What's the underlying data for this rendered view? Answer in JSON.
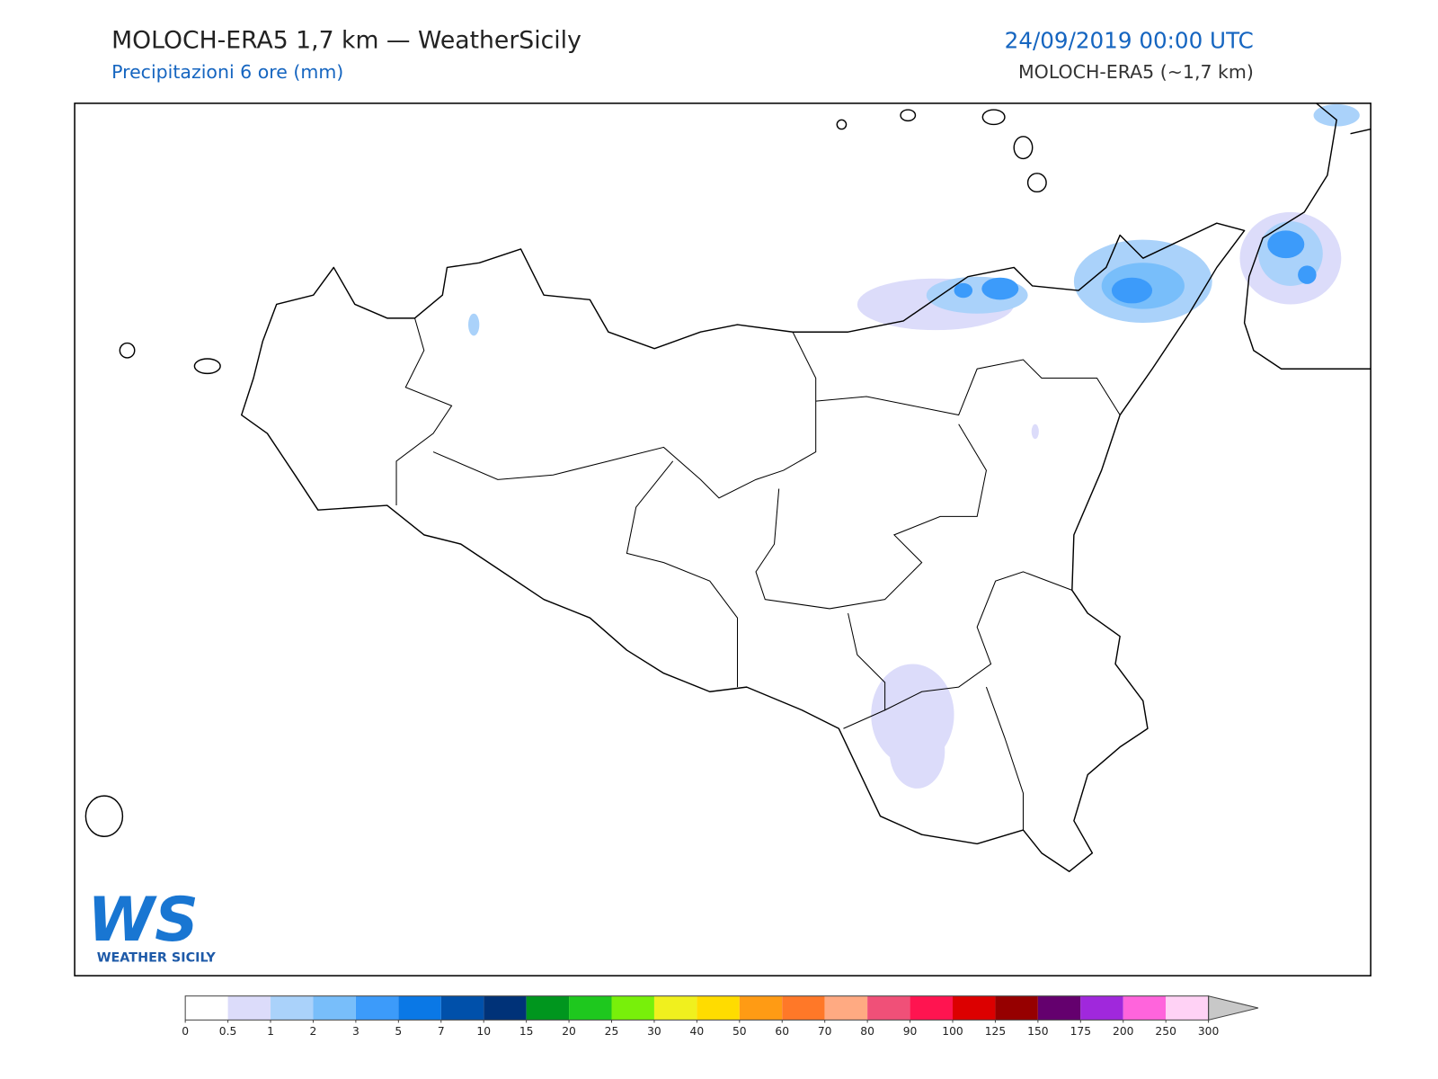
{
  "header": {
    "title": "MOLOCH-ERA5 1,7 km — WeatherSicily",
    "subtitle": "Precipitazioni 6 ore (mm)",
    "date": "24/09/2019 00:00 UTC",
    "model": "MOLOCH-ERA5 (~1,7 km)"
  },
  "logo": {
    "mark": "WS",
    "name": "WEATHER SICILY"
  },
  "legend": {
    "levels": [
      0,
      0.5,
      1,
      2,
      3,
      5,
      7,
      10,
      15,
      20,
      25,
      30,
      40,
      50,
      60,
      70,
      80,
      90,
      100,
      125,
      150,
      175,
      200,
      250,
      300
    ],
    "colors": [
      "#ffffff",
      "#dcdcfa",
      "#aad2fa",
      "#78befa",
      "#3c9bfa",
      "#0a78e6",
      "#0050aa",
      "#003278",
      "#00961e",
      "#1ec81e",
      "#78f00a",
      "#f0f01e",
      "#ffdc00",
      "#ff9b14",
      "#ff7828",
      "#ffaa82",
      "#f05078",
      "#ff1450",
      "#dc0000",
      "#960000",
      "#64006e",
      "#a028dc",
      "#ff64dc",
      "#ffd2f5"
    ],
    "extend_color": "#c8c8c8"
  }
}
